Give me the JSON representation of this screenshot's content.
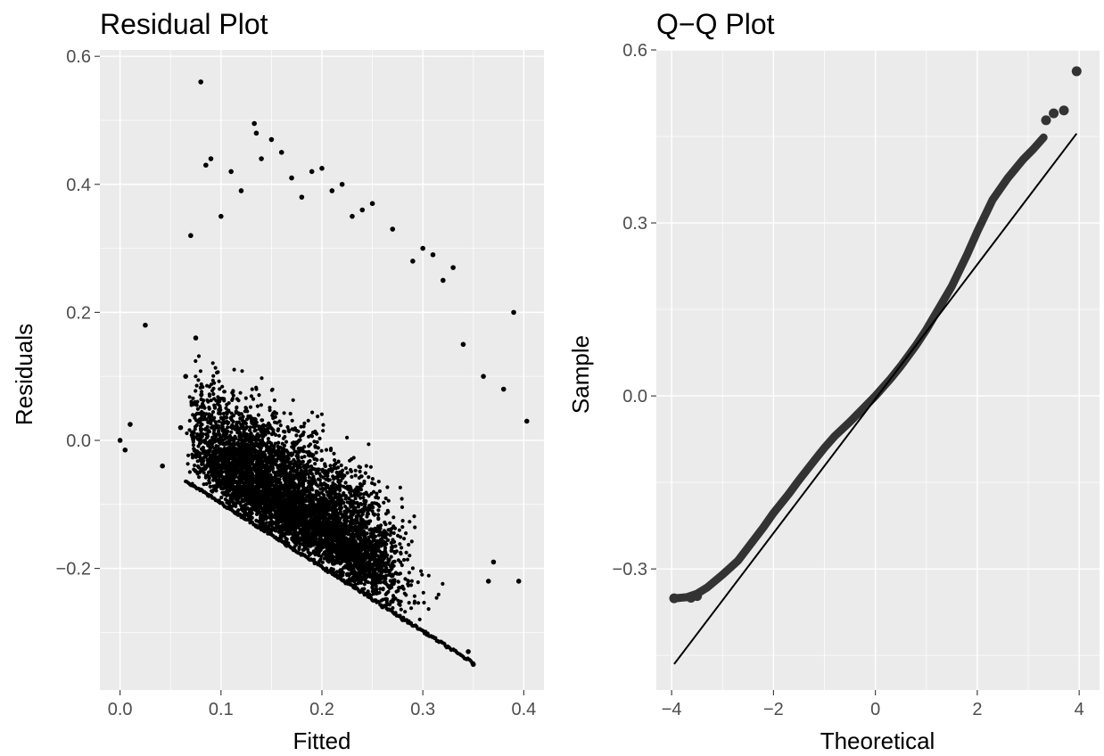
{
  "chart_data": [
    {
      "type": "scatter",
      "title": "Residual Plot",
      "xlabel": "Fitted",
      "ylabel": "Residuals",
      "xlim": [
        -0.02,
        0.42
      ],
      "ylim": [
        -0.39,
        0.61
      ],
      "xticks": [
        0.0,
        0.1,
        0.2,
        0.3,
        0.4
      ],
      "xtick_labels": [
        "0.0",
        "0.1",
        "0.2",
        "0.3",
        "0.4"
      ],
      "yticks": [
        -0.2,
        0.0,
        0.2,
        0.4,
        0.6
      ],
      "ytick_labels": [
        "−0.2",
        "0.0",
        "0.2",
        "0.4",
        "0.6"
      ],
      "grid": true,
      "background": "#ebebeb",
      "point_color": "#000000",
      "notes": "dense cloud of roughly 10000 points; lower boundary runs from (0.065, -0.065) to (0.35, -0.35)",
      "lower_boundary": [
        [
          0.065,
          -0.065
        ],
        [
          0.35,
          -0.35
        ]
      ],
      "series": [
        {
          "x": [
            0.0,
            0.01,
            0.005,
            0.025,
            0.042,
            0.08,
            0.133,
            0.135,
            0.085,
            0.09,
            0.2,
            0.11,
            0.39,
            0.403,
            0.37,
            0.365,
            0.075,
            0.16,
            0.22,
            0.3,
            0.31,
            0.345,
            0.35,
            0.33,
            0.27,
            0.26,
            0.28,
            0.12,
            0.1,
            0.065,
            0.07,
            0.18,
            0.24,
            0.25,
            0.14,
            0.15,
            0.17,
            0.19,
            0.21,
            0.23,
            0.29,
            0.32,
            0.34,
            0.36,
            0.38,
            0.395,
            0.06
          ],
          "y": [
            0.0,
            0.025,
            -0.015,
            0.18,
            -0.04,
            0.56,
            0.495,
            0.48,
            0.43,
            0.44,
            0.425,
            0.42,
            0.2,
            0.03,
            -0.19,
            -0.22,
            0.16,
            0.45,
            0.4,
            0.3,
            0.29,
            -0.33,
            -0.35,
            0.27,
            0.33,
            -0.26,
            -0.28,
            0.39,
            0.35,
            0.1,
            0.32,
            0.38,
            0.36,
            0.37,
            0.44,
            0.47,
            0.41,
            0.42,
            0.39,
            0.35,
            0.28,
            0.25,
            0.15,
            0.1,
            0.08,
            -0.22,
            0.02
          ]
        }
      ]
    },
    {
      "type": "scatter",
      "title": "Q−Q Plot",
      "xlabel": "Theoretical",
      "ylabel": "Sample",
      "xlim": [
        -4.3,
        4.4
      ],
      "ylim": [
        -0.51,
        0.6
      ],
      "xticks": [
        -4,
        -2,
        0,
        2,
        4
      ],
      "xtick_labels": [
        "−4",
        "−2",
        "0",
        "2",
        "4"
      ],
      "yticks": [
        -0.3,
        0.0,
        0.3,
        0.6
      ],
      "ytick_labels": [
        "−0.3",
        "0.0",
        "0.3",
        "0.6"
      ],
      "grid": true,
      "background": "#ebebeb",
      "point_color": "#333333",
      "notes": "sorted sample quantiles against theoretical normal quantiles; points are continuous along the curve",
      "reference_line": {
        "x": [
          -3.95,
          3.95
        ],
        "y": [
          -0.465,
          0.455
        ]
      },
      "curve": {
        "x": [
          -3.95,
          -3.7,
          -3.5,
          -3.3,
          -3.0,
          -2.7,
          -2.5,
          -2.2,
          -2.0,
          -1.7,
          -1.5,
          -1.2,
          -1.0,
          -0.8,
          -0.5,
          -0.2,
          0.0,
          0.3,
          0.5,
          0.8,
          1.0,
          1.3,
          1.5,
          1.8,
          2.0,
          2.3,
          2.6,
          2.9,
          3.1,
          3.3
        ],
        "y": [
          -0.351,
          -0.349,
          -0.343,
          -0.332,
          -0.31,
          -0.286,
          -0.263,
          -0.228,
          -0.203,
          -0.17,
          -0.146,
          -0.112,
          -0.09,
          -0.07,
          -0.045,
          -0.018,
          0.0,
          0.03,
          0.052,
          0.088,
          0.115,
          0.16,
          0.19,
          0.245,
          0.285,
          0.34,
          0.378,
          0.41,
          0.428,
          0.448
        ]
      },
      "outliers": {
        "x": [
          3.35,
          3.5,
          3.7,
          3.95
        ],
        "y": [
          0.478,
          0.49,
          0.495,
          0.563
        ]
      }
    }
  ]
}
